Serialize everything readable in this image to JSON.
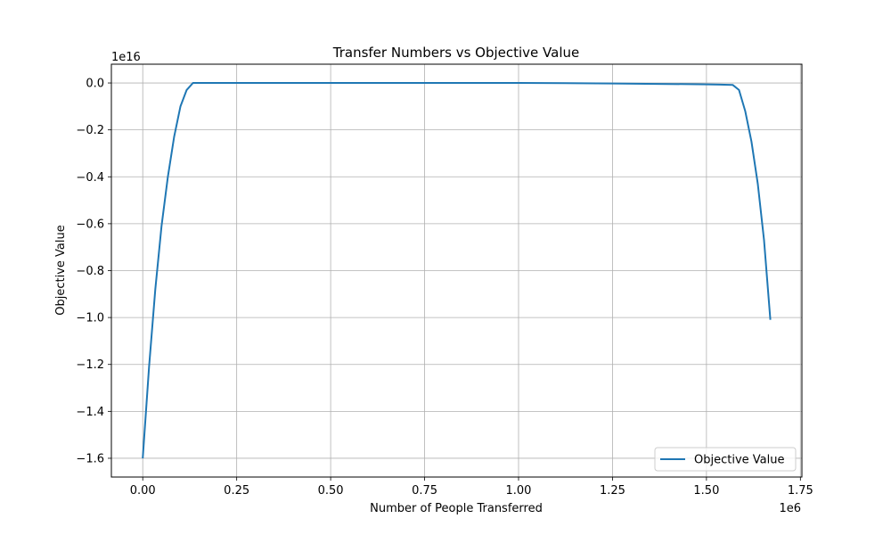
{
  "chart_data": {
    "type": "line",
    "title": "Transfer Numbers vs Objective Value",
    "xlabel": "Number of People Transferred",
    "ylabel": "Objective Value",
    "x_offset_label": "1e6",
    "y_offset_label": "1e16",
    "xlim": [
      -0.0835,
      1.754
    ],
    "ylim": [
      -1.68,
      0.08
    ],
    "x_ticks": [
      0.0,
      0.25,
      0.5,
      0.75,
      1.0,
      1.25,
      1.5,
      1.75
    ],
    "x_tick_labels": [
      "0.00",
      "0.25",
      "0.50",
      "0.75",
      "1.00",
      "1.25",
      "1.50",
      "1.75"
    ],
    "y_ticks": [
      0.0,
      -0.2,
      -0.4,
      -0.6,
      -0.8,
      -1.0,
      -1.2,
      -1.4,
      -1.6
    ],
    "y_tick_labels": [
      "0.0",
      "−0.2",
      "−0.4",
      "−0.6",
      "−0.8",
      "−1.0",
      "−1.2",
      "−1.4",
      "−1.6"
    ],
    "grid": true,
    "legend_position": "lower-right",
    "series": [
      {
        "name": "Objective Value",
        "color": "#1f77b4",
        "x": [
          0.0,
          0.0167,
          0.0334,
          0.0501,
          0.0668,
          0.0835,
          0.1002,
          0.1169,
          0.1336,
          0.25,
          0.5,
          0.75,
          1.0,
          1.25,
          1.5,
          1.5364,
          1.5698,
          1.5865,
          1.6032,
          1.6199,
          1.6366,
          1.6533,
          1.67
        ],
        "y": [
          -1.6,
          -1.21,
          -0.88,
          -0.61,
          -0.4,
          -0.23,
          -0.1,
          -0.03,
          0.0,
          0.0,
          0.0,
          0.0,
          0.0,
          -0.002,
          -0.006,
          -0.007,
          -0.008,
          -0.03,
          -0.12,
          -0.25,
          -0.43,
          -0.67,
          -1.01
        ]
      }
    ]
  }
}
